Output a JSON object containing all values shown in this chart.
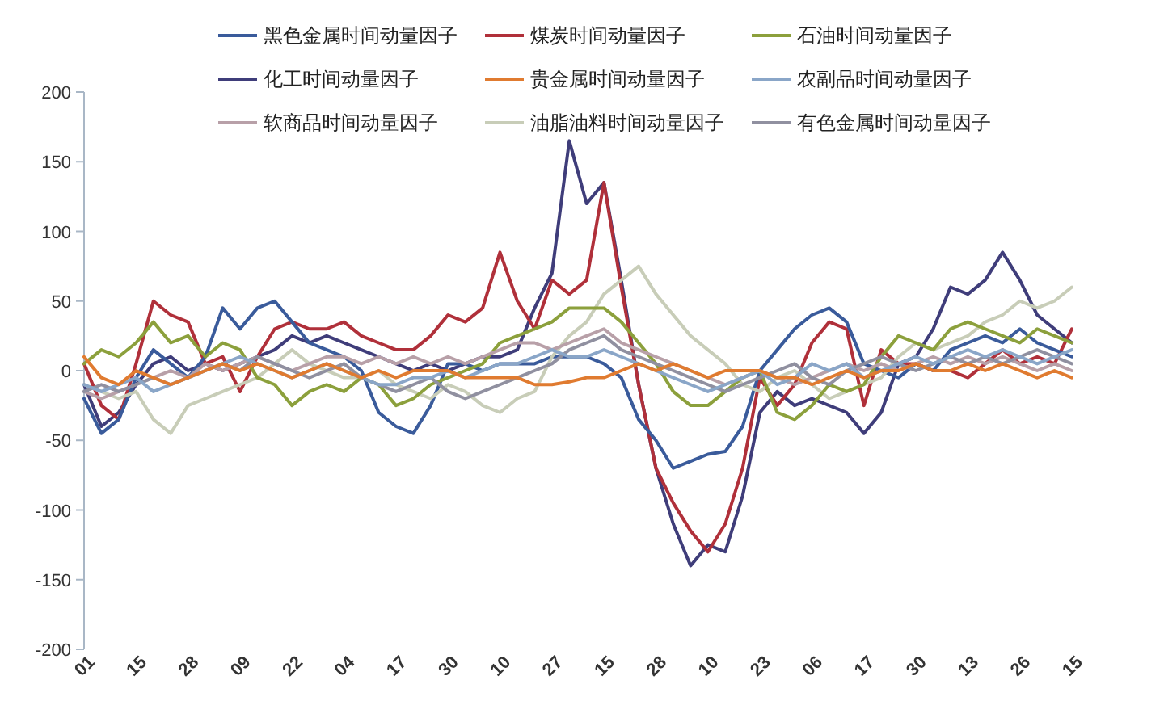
{
  "chart_data": {
    "type": "line",
    "categories": [
      "01",
      null,
      null,
      "15",
      null,
      null,
      "28",
      null,
      null,
      "09",
      null,
      null,
      "22",
      null,
      null,
      "04",
      null,
      null,
      "17",
      null,
      null,
      "30",
      null,
      null,
      "10",
      null,
      null,
      "27",
      null,
      null,
      "15",
      null,
      null,
      "28",
      null,
      null,
      "10",
      null,
      null,
      "23",
      null,
      null,
      "06",
      null,
      null,
      "17",
      null,
      null,
      "30",
      null,
      null,
      "13",
      null,
      null,
      "26",
      null,
      null,
      "15"
    ],
    "ylim": [
      -200,
      200
    ],
    "yticks": [
      -200,
      -150,
      -100,
      -50,
      0,
      50,
      100,
      150,
      200
    ],
    "grid": false,
    "legend": "top",
    "marker": "none",
    "line_style": "solid",
    "series": [
      {
        "name": "黑色金属时间动量因子",
        "color": "#3a5b9b",
        "values": [
          -20,
          -45,
          -35,
          -5,
          15,
          5,
          -5,
          10,
          45,
          30,
          45,
          50,
          35,
          20,
          15,
          10,
          0,
          -30,
          -40,
          -45,
          -25,
          5,
          5,
          0,
          5,
          5,
          5,
          10,
          10,
          10,
          5,
          -5,
          -35,
          -50,
          -70,
          -65,
          -60,
          -58,
          -40,
          0,
          15,
          30,
          40,
          45,
          35,
          5,
          0,
          -5,
          5,
          0,
          15,
          20,
          25,
          20,
          30,
          20,
          15,
          10
        ]
      },
      {
        "name": "煤炭时间动量因子",
        "color": "#b0303a",
        "values": [
          5,
          -25,
          -35,
          5,
          50,
          40,
          35,
          5,
          10,
          -15,
          10,
          30,
          35,
          30,
          30,
          35,
          25,
          20,
          15,
          15,
          25,
          40,
          35,
          45,
          85,
          50,
          30,
          65,
          55,
          65,
          135,
          60,
          -10,
          -70,
          -95,
          -115,
          -130,
          -110,
          -70,
          -5,
          -25,
          -10,
          20,
          35,
          30,
          -25,
          15,
          5,
          5,
          0,
          0,
          -5,
          5,
          15,
          5,
          10,
          5,
          30
        ]
      },
      {
        "name": "石油时间动量因子",
        "color": "#8ca03c",
        "values": [
          5,
          15,
          10,
          20,
          35,
          20,
          25,
          10,
          20,
          15,
          -5,
          -10,
          -25,
          -15,
          -10,
          -15,
          -5,
          -10,
          -25,
          -20,
          -10,
          -5,
          0,
          5,
          20,
          25,
          30,
          35,
          45,
          45,
          45,
          35,
          20,
          5,
          -15,
          -25,
          -25,
          -15,
          -5,
          0,
          -30,
          -35,
          -25,
          -10,
          -15,
          -10,
          10,
          25,
          20,
          15,
          30,
          35,
          30,
          25,
          20,
          30,
          25,
          20
        ]
      },
      {
        "name": "化工时间动量因子",
        "color": "#3f3d7a",
        "values": [
          -10,
          -40,
          -30,
          -10,
          5,
          10,
          0,
          5,
          0,
          5,
          10,
          15,
          25,
          20,
          25,
          20,
          15,
          10,
          5,
          0,
          5,
          0,
          5,
          10,
          10,
          15,
          45,
          70,
          165,
          120,
          135,
          65,
          -10,
          -70,
          -110,
          -140,
          -125,
          -130,
          -90,
          -30,
          -15,
          -25,
          -20,
          -25,
          -30,
          -45,
          -30,
          5,
          10,
          30,
          60,
          55,
          65,
          85,
          65,
          40,
          30,
          20
        ]
      },
      {
        "name": "贵金属时间动量因子",
        "color": "#e07b30",
        "values": [
          10,
          -5,
          -10,
          0,
          -5,
          -10,
          -5,
          0,
          5,
          0,
          5,
          0,
          -5,
          0,
          5,
          0,
          -5,
          0,
          -5,
          0,
          0,
          0,
          -5,
          -5,
          -5,
          -5,
          -10,
          -10,
          -8,
          -5,
          -5,
          0,
          5,
          0,
          5,
          0,
          -5,
          0,
          0,
          0,
          -5,
          -5,
          -10,
          -5,
          0,
          -5,
          0,
          0,
          5,
          0,
          0,
          5,
          0,
          5,
          0,
          -5,
          0,
          -5
        ]
      },
      {
        "name": "农副品时间动量因子",
        "color": "#8aa6c8",
        "values": [
          -10,
          -15,
          -10,
          -5,
          -15,
          -10,
          -5,
          0,
          5,
          10,
          5,
          0,
          -5,
          0,
          5,
          0,
          -5,
          -10,
          -10,
          -5,
          -5,
          0,
          -5,
          0,
          5,
          5,
          10,
          15,
          10,
          10,
          15,
          10,
          5,
          0,
          -5,
          -10,
          -15,
          -10,
          -5,
          0,
          -10,
          -5,
          5,
          0,
          5,
          -5,
          0,
          5,
          10,
          5,
          10,
          15,
          10,
          15,
          10,
          5,
          10,
          15
        ]
      },
      {
        "name": "软商品时间动量因子",
        "color": "#b8a0a8",
        "values": [
          -15,
          -20,
          -15,
          -10,
          -5,
          0,
          -5,
          5,
          0,
          5,
          10,
          5,
          0,
          5,
          10,
          10,
          5,
          10,
          5,
          10,
          5,
          10,
          5,
          10,
          15,
          20,
          20,
          15,
          20,
          25,
          30,
          20,
          15,
          10,
          5,
          0,
          -5,
          -10,
          -5,
          0,
          -5,
          -10,
          -5,
          0,
          5,
          0,
          5,
          0,
          5,
          10,
          5,
          10,
          5,
          10,
          5,
          0,
          5,
          0
        ]
      },
      {
        "name": "油脂油料时间动量因子",
        "color": "#c8cdb8",
        "values": [
          -10,
          -15,
          -20,
          -15,
          -35,
          -45,
          -25,
          -20,
          -15,
          -10,
          -5,
          5,
          15,
          5,
          0,
          -5,
          -5,
          0,
          -10,
          -15,
          -20,
          -10,
          -15,
          -25,
          -30,
          -20,
          -15,
          10,
          25,
          35,
          55,
          65,
          75,
          55,
          40,
          25,
          15,
          5,
          -10,
          -15,
          -5,
          0,
          -10,
          -20,
          -15,
          -10,
          -5,
          10,
          20,
          15,
          20,
          25,
          35,
          40,
          50,
          45,
          50,
          60
        ]
      },
      {
        "name": "有色金属时间动量因子",
        "color": "#9090a0",
        "values": [
          -15,
          -10,
          -15,
          -10,
          -5,
          -10,
          -5,
          0,
          5,
          0,
          10,
          5,
          0,
          -5,
          0,
          5,
          -5,
          -10,
          -15,
          -10,
          -5,
          -15,
          -20,
          -15,
          -10,
          -5,
          0,
          5,
          15,
          20,
          25,
          15,
          10,
          5,
          0,
          -5,
          -10,
          -15,
          -10,
          -5,
          0,
          5,
          -5,
          -10,
          0,
          5,
          10,
          5,
          0,
          5,
          10,
          5,
          10,
          5,
          10,
          15,
          10,
          5
        ]
      }
    ]
  }
}
